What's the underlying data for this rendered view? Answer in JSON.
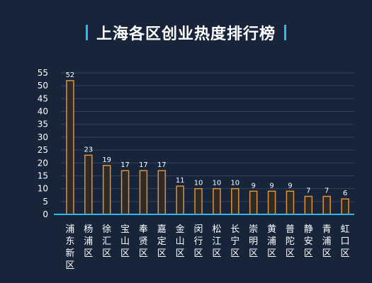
{
  "chart_data": {
    "type": "bar",
    "title": "上海各区创业热度排行榜",
    "categories": [
      "浦东新区",
      "杨浦区",
      "徐汇区",
      "宝山区",
      "奉贤区",
      "嘉定区",
      "金山区",
      "闵行区",
      "松江区",
      "长宁区",
      "崇明区",
      "黄浦区",
      "普陀区",
      "静安区",
      "青浦区",
      "虹口区"
    ],
    "values": [
      52,
      23,
      19,
      17,
      17,
      17,
      11,
      10,
      10,
      10,
      9,
      9,
      9,
      7,
      7,
      6
    ],
    "yticks": [
      "0",
      "5",
      "10",
      "15",
      "20",
      "25",
      "30",
      "35",
      "40",
      "45",
      "50",
      "55"
    ],
    "ylim": [
      0,
      55
    ],
    "xlabel": "",
    "ylabel": "",
    "grid": true,
    "colors": {
      "background": "#17243a",
      "bar_fill": "#2e2a26",
      "bar_stroke": "#e0913c",
      "axis": "#2fb8e8",
      "grid": "#33455e",
      "accent": "#2fb8e8"
    }
  }
}
